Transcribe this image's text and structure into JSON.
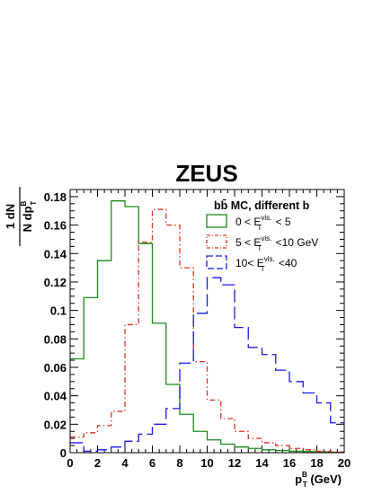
{
  "chart_data": {
    "type": "line",
    "title": "ZEUS",
    "xlabel": {
      "main": "p",
      "sup": "B",
      "sub": "T",
      "suffix": " (GeV)"
    },
    "ylabel": {
      "num": "1 dN",
      "den_main": "N dp",
      "den_sup": "B",
      "den_sub": "T"
    },
    "xlim": [
      0,
      20
    ],
    "ylim": [
      0,
      0.185
    ],
    "x_ticks": [
      "0",
      "2",
      "4",
      "6",
      "8",
      "10",
      "12",
      "14",
      "16",
      "18",
      "20"
    ],
    "y_ticks": [
      "0",
      "0.02",
      "0.04",
      "0.06",
      "0.08",
      "0.1",
      "0.12",
      "0.14",
      "0.16",
      "0.18"
    ],
    "y_tick_values": [
      0,
      0.02,
      0.04,
      0.06,
      0.08,
      0.1,
      0.12,
      0.14,
      0.16,
      0.18
    ],
    "grid": false,
    "legend_position": "top-right",
    "legend_title": "bb̄ MC, different b",
    "bin_edges": [
      0,
      1,
      2,
      3,
      4,
      5,
      6,
      7,
      8,
      9,
      10,
      11,
      12,
      13,
      14,
      15,
      16,
      17,
      18,
      19,
      20
    ],
    "series": [
      {
        "legend_pre": "0 < E",
        "legend_sup": "vis.",
        "legend_sub": "T",
        "legend_post": " < 5",
        "color": "#1a8a1a",
        "dash": "solid",
        "values": [
          0.066,
          0.109,
          0.135,
          0.177,
          0.173,
          0.147,
          0.091,
          0.048,
          0.027,
          0.015,
          0.009,
          0.006,
          0.004,
          0.003,
          0.002,
          0.0015,
          0.001,
          0.0008,
          0.0005,
          0.0003
        ]
      },
      {
        "legend_pre": "5 < E",
        "legend_sup": "vis.",
        "legend_sub": "T",
        "legend_post": " <10   GeV",
        "color": "#e03020",
        "dash": "dashdot",
        "values": [
          0.011,
          0.014,
          0.019,
          0.029,
          0.09,
          0.148,
          0.171,
          0.16,
          0.13,
          0.064,
          0.037,
          0.024,
          0.015,
          0.01,
          0.007,
          0.005,
          0.003,
          0.002,
          0.001,
          0.0005
        ]
      },
      {
        "legend_pre": "10< E",
        "legend_sup": "vis.",
        "legend_sub": "T",
        "legend_post": " <40",
        "color": "#1a1aee",
        "dash": "longdash",
        "values": [
          0.007,
          0.001,
          0.002,
          0.004,
          0.008,
          0.013,
          0.02,
          0.031,
          0.063,
          0.098,
          0.123,
          0.118,
          0.088,
          0.074,
          0.069,
          0.058,
          0.05,
          0.042,
          0.035,
          0.021
        ]
      }
    ]
  }
}
